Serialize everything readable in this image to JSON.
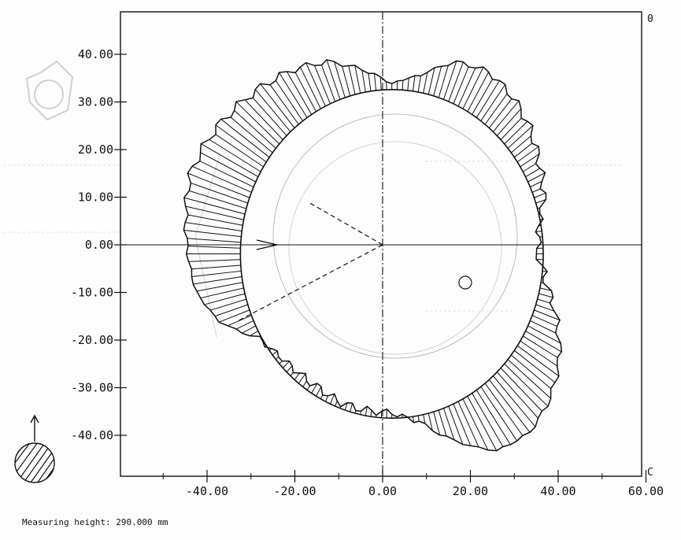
{
  "footer": {
    "label": "Measuring height:",
    "value": "290.000 mm"
  },
  "corners": {
    "top_right": "0",
    "bottom_right": "C"
  },
  "chart_data": {
    "type": "polar-deviation",
    "title": "",
    "xlabel": "",
    "ylabel": "",
    "xlim": [
      -60,
      60
    ],
    "ylim": [
      -50,
      49
    ],
    "x_ticks": [
      -40,
      -20,
      0,
      20,
      40,
      60
    ],
    "x_tick_labels": [
      "-40.00",
      "-20.00",
      "0.00",
      "20.00",
      "40.00",
      "60.00"
    ],
    "y_ticks": [
      40,
      30,
      20,
      10,
      0,
      -10,
      -20,
      -30,
      -40
    ],
    "y_tick_labels": [
      "40.00",
      "30.00",
      "20.00",
      "10.00",
      "0.00",
      "-10.00",
      "-20.00",
      "-30.00",
      "-40.00"
    ],
    "reference_circle": {
      "cx": 2.1,
      "cy": -1.9,
      "r": 34.5
    },
    "deviation_profile": [
      [
        0,
        2
      ],
      [
        10,
        1
      ],
      [
        20,
        -4
      ],
      [
        30,
        -7
      ],
      [
        40,
        -11
      ],
      [
        50,
        -14
      ],
      [
        60,
        -16
      ],
      [
        70,
        -14
      ],
      [
        80,
        -6
      ],
      [
        90,
        -2
      ],
      [
        100,
        -8
      ],
      [
        110,
        -14
      ],
      [
        120,
        -17
      ],
      [
        130,
        -19
      ],
      [
        140,
        -21
      ],
      [
        150,
        -23
      ],
      [
        160,
        -24
      ],
      [
        170,
        -22
      ],
      [
        180,
        -20
      ],
      [
        190,
        -18
      ],
      [
        200,
        -12
      ],
      [
        210,
        -1
      ],
      [
        220,
        2
      ],
      [
        230,
        3
      ],
      [
        240,
        3
      ],
      [
        250,
        2
      ],
      [
        260,
        2
      ],
      [
        270,
        2
      ],
      [
        280,
        -2
      ],
      [
        290,
        -12
      ],
      [
        300,
        -22
      ],
      [
        310,
        -24
      ],
      [
        320,
        -21
      ],
      [
        330,
        -16
      ],
      [
        340,
        -9
      ],
      [
        350,
        -2
      ],
      [
        360,
        2
      ]
    ],
    "grid": false,
    "legend": "none"
  },
  "colors": {
    "ink": "#111111",
    "faint": "#bbbbbb",
    "background": "#fdfdfd"
  },
  "icons": {
    "direction_arrow": "up-arrow-icon",
    "section_symbol": "hatched-circle-icon"
  }
}
